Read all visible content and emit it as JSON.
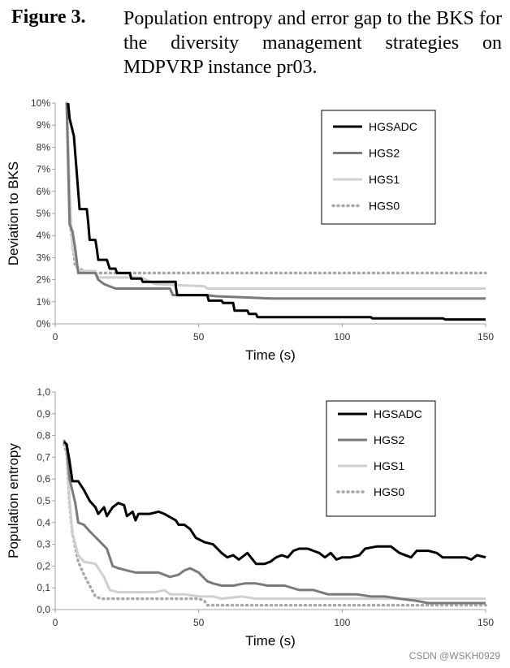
{
  "caption": {
    "label": "Figure 3.",
    "text": "Population entropy and error gap to the BKS for the diversity management strategies on MDPVRP instance pr03."
  },
  "watermark": "CSDN @WSKH0929",
  "colors": {
    "HGSADC": "#000000",
    "HGS2": "#7a7a7a",
    "HGS1": "#cfcfcf",
    "HGS0": "#a8a8a8"
  },
  "chart_data": [
    {
      "type": "line",
      "xlabel": "Time (s)",
      "ylabel": "Deviation to BKS",
      "xlim": [
        0,
        150
      ],
      "ylim": [
        0,
        10
      ],
      "xticks": [
        "0",
        "50",
        "100",
        "150"
      ],
      "yticks": [
        "0%",
        "1%",
        "2%",
        "3%",
        "4%",
        "5%",
        "6%",
        "7%",
        "8%",
        "9%",
        "10%"
      ],
      "grid": false,
      "legend": "top-right",
      "series": [
        {
          "name": "HGSADC",
          "style": "solid",
          "points": [
            [
              4.5,
              10
            ],
            [
              5,
              9.3
            ],
            [
              6.5,
              8.5
            ],
            [
              7,
              7.7
            ],
            [
              8,
              6
            ],
            [
              8.5,
              5.2
            ],
            [
              11,
              5.2
            ],
            [
              11.5,
              4.6
            ],
            [
              12,
              3.8
            ],
            [
              14,
              3.8
            ],
            [
              14.5,
              3.4
            ],
            [
              15,
              2.9
            ],
            [
              18,
              2.9
            ],
            [
              18.5,
              2.7
            ],
            [
              19,
              2.5
            ],
            [
              21,
              2.5
            ],
            [
              21.5,
              2.3
            ],
            [
              26,
              2.3
            ],
            [
              26.5,
              2.05
            ],
            [
              30,
              2.05
            ],
            [
              30.5,
              1.9
            ],
            [
              42,
              1.9
            ],
            [
              42,
              1.7
            ],
            [
              42.5,
              1.3
            ],
            [
              53,
              1.3
            ],
            [
              53.5,
              1.05
            ],
            [
              58,
              1.05
            ],
            [
              58.5,
              0.95
            ],
            [
              62,
              0.95
            ],
            [
              62.5,
              0.6
            ],
            [
              67,
              0.6
            ],
            [
              67.5,
              0.45
            ],
            [
              70,
              0.45
            ],
            [
              70.5,
              0.3
            ],
            [
              110,
              0.3
            ],
            [
              110.5,
              0.25
            ],
            [
              135,
              0.25
            ],
            [
              136,
              0.2
            ],
            [
              150,
              0.2
            ]
          ]
        },
        {
          "name": "HGS2",
          "style": "solid",
          "points": [
            [
              4,
              10
            ],
            [
              5,
              4.5
            ],
            [
              6,
              4.2
            ],
            [
              7,
              3.4
            ],
            [
              8,
              2.3
            ],
            [
              14,
              2.3
            ],
            [
              15,
              2
            ],
            [
              17,
              1.8
            ],
            [
              21,
              1.6
            ],
            [
              40,
              1.6
            ],
            [
              41,
              1.3
            ],
            [
              53,
              1.3
            ],
            [
              56,
              1.25
            ],
            [
              66,
              1.2
            ],
            [
              75,
              1.15
            ],
            [
              150,
              1.15
            ]
          ]
        },
        {
          "name": "HGS1",
          "style": "solid",
          "points": [
            [
              4,
              10
            ],
            [
              5,
              6
            ],
            [
              6,
              3.4
            ],
            [
              7,
              3
            ],
            [
              8,
              2.4
            ],
            [
              14,
              2.4
            ],
            [
              15,
              2.1
            ],
            [
              30,
              2.1
            ],
            [
              35,
              1.8
            ],
            [
              52,
              1.7
            ],
            [
              53,
              1.6
            ],
            [
              150,
              1.6
            ]
          ]
        },
        {
          "name": "HGS0",
          "style": "dotted",
          "points": [
            [
              4,
              10
            ],
            [
              5,
              6
            ],
            [
              5.5,
              4.2
            ],
            [
              7,
              2.6
            ],
            [
              10,
              2.4
            ],
            [
              14,
              2.3
            ],
            [
              150,
              2.3
            ]
          ]
        }
      ]
    },
    {
      "type": "line",
      "xlabel": "Time (s)",
      "ylabel": "Population entropy",
      "xlim": [
        0,
        150
      ],
      "ylim": [
        0,
        1.0
      ],
      "xticks": [
        "0",
        "50",
        "100",
        "150"
      ],
      "yticks": [
        "0,0",
        "0,1",
        "0,2",
        "0,3",
        "0,4",
        "0,5",
        "0,6",
        "0,7",
        "0,8",
        "0,9",
        "1,0"
      ],
      "grid": false,
      "legend": "top-right",
      "series": [
        {
          "name": "HGSADC",
          "style": "solid",
          "points": [
            [
              3,
              0.77
            ],
            [
              4,
              0.76
            ],
            [
              5,
              0.68
            ],
            [
              6,
              0.59
            ],
            [
              8,
              0.59
            ],
            [
              10,
              0.55
            ],
            [
              12,
              0.5
            ],
            [
              14,
              0.47
            ],
            [
              15,
              0.44
            ],
            [
              17,
              0.47
            ],
            [
              18,
              0.43
            ],
            [
              20,
              0.47
            ],
            [
              22,
              0.49
            ],
            [
              24,
              0.48
            ],
            [
              25,
              0.43
            ],
            [
              27,
              0.45
            ],
            [
              28,
              0.41
            ],
            [
              29,
              0.44
            ],
            [
              33,
              0.44
            ],
            [
              36,
              0.45
            ],
            [
              38,
              0.44
            ],
            [
              42,
              0.41
            ],
            [
              43,
              0.39
            ],
            [
              45,
              0.39
            ],
            [
              47,
              0.37
            ],
            [
              49,
              0.33
            ],
            [
              52,
              0.31
            ],
            [
              55,
              0.3
            ],
            [
              58,
              0.26
            ],
            [
              60,
              0.24
            ],
            [
              62,
              0.25
            ],
            [
              64,
              0.23
            ],
            [
              67,
              0.26
            ],
            [
              70,
              0.21
            ],
            [
              73,
              0.21
            ],
            [
              75,
              0.22
            ],
            [
              77,
              0.24
            ],
            [
              79,
              0.25
            ],
            [
              81,
              0.24
            ],
            [
              83,
              0.27
            ],
            [
              85,
              0.28
            ],
            [
              88,
              0.28
            ],
            [
              90,
              0.27
            ],
            [
              92,
              0.26
            ],
            [
              94,
              0.24
            ],
            [
              96,
              0.26
            ],
            [
              98,
              0.23
            ],
            [
              100,
              0.24
            ],
            [
              103,
              0.24
            ],
            [
              106,
              0.25
            ],
            [
              108,
              0.28
            ],
            [
              112,
              0.29
            ],
            [
              117,
              0.29
            ],
            [
              120,
              0.26
            ],
            [
              124,
              0.24
            ],
            [
              126,
              0.27
            ],
            [
              130,
              0.27
            ],
            [
              133,
              0.26
            ],
            [
              135,
              0.24
            ],
            [
              140,
              0.24
            ],
            [
              143,
              0.24
            ],
            [
              145,
              0.23
            ],
            [
              147,
              0.25
            ],
            [
              150,
              0.24
            ]
          ]
        },
        {
          "name": "HGS2",
          "style": "solid",
          "points": [
            [
              3,
              0.78
            ],
            [
              4,
              0.75
            ],
            [
              5,
              0.6
            ],
            [
              7,
              0.49
            ],
            [
              8,
              0.4
            ],
            [
              10,
              0.39
            ],
            [
              12,
              0.36
            ],
            [
              15,
              0.32
            ],
            [
              18,
              0.28
            ],
            [
              20,
              0.2
            ],
            [
              22,
              0.19
            ],
            [
              25,
              0.18
            ],
            [
              28,
              0.17
            ],
            [
              32,
              0.17
            ],
            [
              36,
              0.17
            ],
            [
              40,
              0.15
            ],
            [
              43,
              0.16
            ],
            [
              45,
              0.18
            ],
            [
              47,
              0.19
            ],
            [
              50,
              0.17
            ],
            [
              53,
              0.13
            ],
            [
              55,
              0.12
            ],
            [
              58,
              0.11
            ],
            [
              62,
              0.11
            ],
            [
              66,
              0.12
            ],
            [
              70,
              0.12
            ],
            [
              74,
              0.11
            ],
            [
              80,
              0.11
            ],
            [
              85,
              0.09
            ],
            [
              90,
              0.09
            ],
            [
              95,
              0.07
            ],
            [
              100,
              0.07
            ],
            [
              105,
              0.07
            ],
            [
              110,
              0.06
            ],
            [
              115,
              0.06
            ],
            [
              120,
              0.05
            ],
            [
              126,
              0.04
            ],
            [
              130,
              0.03
            ],
            [
              150,
              0.03
            ]
          ]
        },
        {
          "name": "HGS1",
          "style": "solid",
          "points": [
            [
              3,
              0.77
            ],
            [
              4,
              0.74
            ],
            [
              5,
              0.5
            ],
            [
              6,
              0.35
            ],
            [
              8,
              0.25
            ],
            [
              10,
              0.22
            ],
            [
              14,
              0.21
            ],
            [
              17,
              0.15
            ],
            [
              19,
              0.09
            ],
            [
              22,
              0.08
            ],
            [
              30,
              0.08
            ],
            [
              35,
              0.08
            ],
            [
              38,
              0.09
            ],
            [
              40,
              0.07
            ],
            [
              45,
              0.07
            ],
            [
              50,
              0.06
            ],
            [
              55,
              0.06
            ],
            [
              58,
              0.05
            ],
            [
              65,
              0.06
            ],
            [
              70,
              0.05
            ],
            [
              150,
              0.05
            ]
          ]
        },
        {
          "name": "HGS0",
          "style": "dotted",
          "points": [
            [
              3,
              0.76
            ],
            [
              4,
              0.72
            ],
            [
              5,
              0.48
            ],
            [
              6,
              0.35
            ],
            [
              8,
              0.22
            ],
            [
              10,
              0.16
            ],
            [
              12,
              0.11
            ],
            [
              14,
              0.06
            ],
            [
              16,
              0.05
            ],
            [
              25,
              0.05
            ],
            [
              40,
              0.05
            ],
            [
              50,
              0.05
            ],
            [
              52,
              0.04
            ],
            [
              53,
              0.02
            ],
            [
              150,
              0.02
            ]
          ]
        }
      ]
    }
  ]
}
